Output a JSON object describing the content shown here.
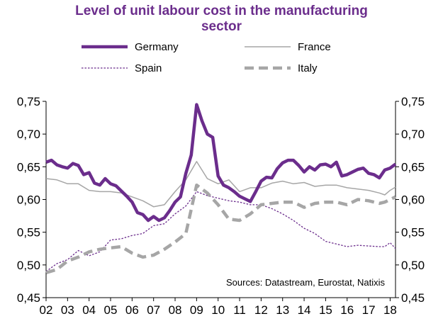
{
  "chart_data": {
    "type": "line",
    "title_line1": "Level of unit labour cost in the manufacturing",
    "title_line2": "sector",
    "source_note": "Sources:  Datastream,  Eurostat,  Natixis",
    "ylim": [
      0.45,
      0.75
    ],
    "yticks": [
      "0,45",
      "0,50",
      "0,55",
      "0,60",
      "0,65",
      "0,70",
      "0,75"
    ],
    "x_tick_labels": [
      "02",
      "03",
      "04",
      "05",
      "06",
      "07",
      "08",
      "09",
      "10",
      "11",
      "12",
      "13",
      "14",
      "15",
      "16",
      "17",
      "18"
    ],
    "xlim": [
      2002.0,
      2018.25
    ],
    "grid": false,
    "legend_placement": "top",
    "series": [
      {
        "name": "Germany",
        "color": "#6b2d8c",
        "style": "solid-thick",
        "points": [
          [
            2002.0,
            0.657
          ],
          [
            2002.25,
            0.66
          ],
          [
            2002.5,
            0.653
          ],
          [
            2002.75,
            0.65
          ],
          [
            2003.0,
            0.648
          ],
          [
            2003.25,
            0.655
          ],
          [
            2003.5,
            0.652
          ],
          [
            2003.75,
            0.638
          ],
          [
            2004.0,
            0.641
          ],
          [
            2004.25,
            0.625
          ],
          [
            2004.5,
            0.622
          ],
          [
            2004.75,
            0.632
          ],
          [
            2005.0,
            0.624
          ],
          [
            2005.25,
            0.621
          ],
          [
            2005.5,
            0.613
          ],
          [
            2005.75,
            0.605
          ],
          [
            2006.0,
            0.596
          ],
          [
            2006.25,
            0.58
          ],
          [
            2006.5,
            0.577
          ],
          [
            2006.75,
            0.568
          ],
          [
            2007.0,
            0.574
          ],
          [
            2007.25,
            0.568
          ],
          [
            2007.5,
            0.572
          ],
          [
            2007.75,
            0.583
          ],
          [
            2008.0,
            0.596
          ],
          [
            2008.25,
            0.604
          ],
          [
            2008.5,
            0.64
          ],
          [
            2008.75,
            0.668
          ],
          [
            2009.0,
            0.745
          ],
          [
            2009.25,
            0.72
          ],
          [
            2009.5,
            0.7
          ],
          [
            2009.75,
            0.695
          ],
          [
            2010.0,
            0.636
          ],
          [
            2010.25,
            0.622
          ],
          [
            2010.5,
            0.618
          ],
          [
            2010.75,
            0.612
          ],
          [
            2011.0,
            0.605
          ],
          [
            2011.25,
            0.601
          ],
          [
            2011.5,
            0.597
          ],
          [
            2011.75,
            0.612
          ],
          [
            2012.0,
            0.628
          ],
          [
            2012.25,
            0.634
          ],
          [
            2012.5,
            0.633
          ],
          [
            2012.75,
            0.647
          ],
          [
            2013.0,
            0.656
          ],
          [
            2013.25,
            0.66
          ],
          [
            2013.5,
            0.66
          ],
          [
            2013.75,
            0.652
          ],
          [
            2014.0,
            0.642
          ],
          [
            2014.25,
            0.65
          ],
          [
            2014.5,
            0.645
          ],
          [
            2014.75,
            0.653
          ],
          [
            2015.0,
            0.654
          ],
          [
            2015.25,
            0.65
          ],
          [
            2015.5,
            0.657
          ],
          [
            2015.75,
            0.636
          ],
          [
            2016.0,
            0.638
          ],
          [
            2016.25,
            0.642
          ],
          [
            2016.5,
            0.646
          ],
          [
            2016.75,
            0.648
          ],
          [
            2017.0,
            0.64
          ],
          [
            2017.25,
            0.638
          ],
          [
            2017.5,
            0.633
          ],
          [
            2017.75,
            0.645
          ],
          [
            2018.0,
            0.648
          ],
          [
            2018.25,
            0.654
          ]
        ]
      },
      {
        "name": "France",
        "color": "#a6a6a6",
        "style": "solid-thin",
        "points": [
          [
            2002.0,
            0.632
          ],
          [
            2002.5,
            0.63
          ],
          [
            2003.0,
            0.624
          ],
          [
            2003.5,
            0.624
          ],
          [
            2004.0,
            0.614
          ],
          [
            2004.5,
            0.612
          ],
          [
            2005.0,
            0.612
          ],
          [
            2005.5,
            0.61
          ],
          [
            2006.0,
            0.604
          ],
          [
            2006.5,
            0.598
          ],
          [
            2007.0,
            0.589
          ],
          [
            2007.5,
            0.592
          ],
          [
            2008.0,
            0.612
          ],
          [
            2008.5,
            0.63
          ],
          [
            2009.0,
            0.658
          ],
          [
            2009.5,
            0.632
          ],
          [
            2010.0,
            0.624
          ],
          [
            2010.5,
            0.63
          ],
          [
            2011.0,
            0.612
          ],
          [
            2011.5,
            0.618
          ],
          [
            2012.0,
            0.618
          ],
          [
            2012.5,
            0.625
          ],
          [
            2013.0,
            0.628
          ],
          [
            2013.5,
            0.624
          ],
          [
            2014.0,
            0.626
          ],
          [
            2014.5,
            0.62
          ],
          [
            2015.0,
            0.622
          ],
          [
            2015.5,
            0.622
          ],
          [
            2016.0,
            0.618
          ],
          [
            2016.5,
            0.616
          ],
          [
            2017.0,
            0.614
          ],
          [
            2017.5,
            0.61
          ],
          [
            2017.75,
            0.607
          ],
          [
            2018.0,
            0.614
          ],
          [
            2018.25,
            0.619
          ]
        ]
      },
      {
        "name": "Spain",
        "color": "#6b2d8c",
        "style": "dotted",
        "points": [
          [
            2002.0,
            0.49
          ],
          [
            2002.5,
            0.502
          ],
          [
            2003.0,
            0.508
          ],
          [
            2003.5,
            0.522
          ],
          [
            2004.0,
            0.514
          ],
          [
            2004.5,
            0.52
          ],
          [
            2005.0,
            0.538
          ],
          [
            2005.5,
            0.54
          ],
          [
            2006.0,
            0.545
          ],
          [
            2006.5,
            0.548
          ],
          [
            2007.0,
            0.56
          ],
          [
            2007.5,
            0.563
          ],
          [
            2008.0,
            0.578
          ],
          [
            2008.5,
            0.59
          ],
          [
            2009.0,
            0.612
          ],
          [
            2009.5,
            0.606
          ],
          [
            2010.0,
            0.602
          ],
          [
            2010.5,
            0.598
          ],
          [
            2011.0,
            0.596
          ],
          [
            2011.5,
            0.592
          ],
          [
            2012.0,
            0.592
          ],
          [
            2012.5,
            0.586
          ],
          [
            2013.0,
            0.578
          ],
          [
            2013.5,
            0.568
          ],
          [
            2014.0,
            0.556
          ],
          [
            2014.5,
            0.548
          ],
          [
            2015.0,
            0.536
          ],
          [
            2015.5,
            0.532
          ],
          [
            2016.0,
            0.528
          ],
          [
            2016.5,
            0.53
          ],
          [
            2017.0,
            0.529
          ],
          [
            2017.5,
            0.528
          ],
          [
            2017.75,
            0.528
          ],
          [
            2018.0,
            0.534
          ],
          [
            2018.25,
            0.525
          ]
        ]
      },
      {
        "name": "Italy",
        "color": "#a6a6a6",
        "style": "dashed-thick",
        "points": [
          [
            2002.0,
            0.488
          ],
          [
            2002.5,
            0.493
          ],
          [
            2003.0,
            0.506
          ],
          [
            2003.5,
            0.512
          ],
          [
            2004.0,
            0.52
          ],
          [
            2004.5,
            0.524
          ],
          [
            2005.0,
            0.526
          ],
          [
            2005.5,
            0.528
          ],
          [
            2006.0,
            0.518
          ],
          [
            2006.5,
            0.512
          ],
          [
            2007.0,
            0.515
          ],
          [
            2007.5,
            0.524
          ],
          [
            2008.0,
            0.535
          ],
          [
            2008.5,
            0.548
          ],
          [
            2009.0,
            0.622
          ],
          [
            2009.5,
            0.61
          ],
          [
            2010.0,
            0.592
          ],
          [
            2010.5,
            0.57
          ],
          [
            2011.0,
            0.568
          ],
          [
            2011.5,
            0.578
          ],
          [
            2012.0,
            0.592
          ],
          [
            2012.5,
            0.594
          ],
          [
            2013.0,
            0.596
          ],
          [
            2013.5,
            0.596
          ],
          [
            2014.0,
            0.588
          ],
          [
            2014.5,
            0.594
          ],
          [
            2015.0,
            0.596
          ],
          [
            2015.5,
            0.596
          ],
          [
            2016.0,
            0.592
          ],
          [
            2016.5,
            0.6
          ],
          [
            2017.0,
            0.598
          ],
          [
            2017.5,
            0.594
          ],
          [
            2017.75,
            0.596
          ],
          [
            2018.0,
            0.6
          ],
          [
            2018.25,
            0.604
          ]
        ]
      }
    ]
  }
}
